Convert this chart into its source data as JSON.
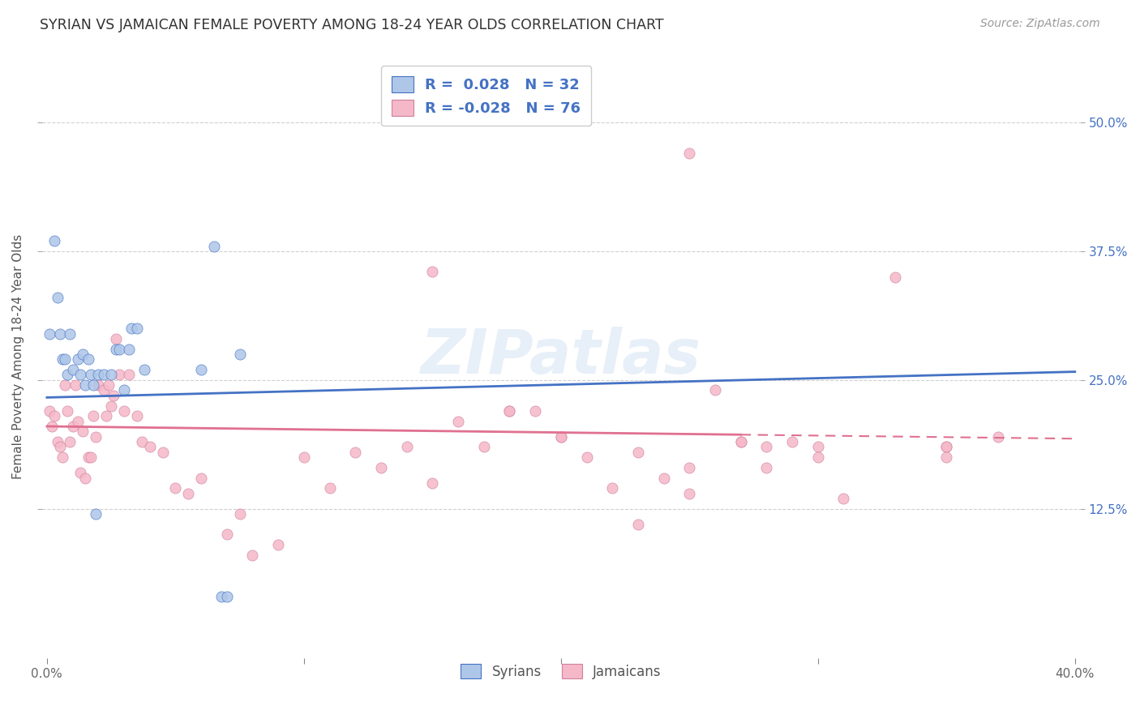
{
  "title": "SYRIAN VS JAMAICAN FEMALE POVERTY AMONG 18-24 YEAR OLDS CORRELATION CHART",
  "source": "Source: ZipAtlas.com",
  "ylabel": "Female Poverty Among 18-24 Year Olds",
  "ytick_labels": [
    "50.0%",
    "37.5%",
    "25.0%",
    "12.5%"
  ],
  "ytick_values": [
    0.5,
    0.375,
    0.25,
    0.125
  ],
  "ylim": [
    -0.02,
    0.565
  ],
  "xlim": [
    -0.002,
    0.402
  ],
  "watermark": "ZIPatlas",
  "legend_r_syrian": "R =  0.028",
  "legend_n_syrian": "N = 32",
  "legend_r_jamaican": "R = -0.028",
  "legend_n_jamaican": "N = 76",
  "color_syrian": "#aec6e8",
  "color_jamaican": "#f5b8c8",
  "color_trend_syrian": "#4472c4",
  "color_trend_jamaican": "#e07090",
  "color_text_blue": "#4472c4",
  "background_color": "#ffffff",
  "grid_color": "#d0d0d0",
  "syrians_x": [
    0.001,
    0.003,
    0.004,
    0.005,
    0.006,
    0.007,
    0.008,
    0.009,
    0.01,
    0.012,
    0.013,
    0.014,
    0.015,
    0.016,
    0.017,
    0.018,
    0.019,
    0.02,
    0.022,
    0.025,
    0.027,
    0.028,
    0.03,
    0.032,
    0.033,
    0.035,
    0.038,
    0.06,
    0.065,
    0.068,
    0.07,
    0.075
  ],
  "syrians_y": [
    0.295,
    0.385,
    0.33,
    0.295,
    0.27,
    0.27,
    0.255,
    0.295,
    0.26,
    0.27,
    0.255,
    0.275,
    0.245,
    0.27,
    0.255,
    0.245,
    0.12,
    0.255,
    0.255,
    0.255,
    0.28,
    0.28,
    0.24,
    0.28,
    0.3,
    0.3,
    0.26,
    0.26,
    0.38,
    0.04,
    0.04,
    0.275
  ],
  "jamaicans_x": [
    0.001,
    0.002,
    0.003,
    0.004,
    0.005,
    0.006,
    0.007,
    0.008,
    0.009,
    0.01,
    0.011,
    0.012,
    0.013,
    0.014,
    0.015,
    0.016,
    0.017,
    0.018,
    0.019,
    0.02,
    0.022,
    0.023,
    0.024,
    0.025,
    0.026,
    0.027,
    0.028,
    0.03,
    0.032,
    0.035,
    0.037,
    0.04,
    0.045,
    0.05,
    0.055,
    0.06,
    0.07,
    0.075,
    0.08,
    0.09,
    0.1,
    0.11,
    0.12,
    0.13,
    0.14,
    0.15,
    0.16,
    0.17,
    0.18,
    0.19,
    0.2,
    0.21,
    0.22,
    0.23,
    0.24,
    0.25,
    0.26,
    0.27,
    0.28,
    0.29,
    0.3,
    0.31,
    0.33,
    0.35,
    0.15,
    0.18,
    0.2,
    0.23,
    0.25,
    0.28,
    0.3,
    0.35,
    0.25,
    0.27,
    0.35,
    0.37
  ],
  "jamaicans_y": [
    0.22,
    0.205,
    0.215,
    0.19,
    0.185,
    0.175,
    0.245,
    0.22,
    0.19,
    0.205,
    0.245,
    0.21,
    0.16,
    0.2,
    0.155,
    0.175,
    0.175,
    0.215,
    0.195,
    0.245,
    0.24,
    0.215,
    0.245,
    0.225,
    0.235,
    0.29,
    0.255,
    0.22,
    0.255,
    0.215,
    0.19,
    0.185,
    0.18,
    0.145,
    0.14,
    0.155,
    0.1,
    0.12,
    0.08,
    0.09,
    0.175,
    0.145,
    0.18,
    0.165,
    0.185,
    0.15,
    0.21,
    0.185,
    0.22,
    0.22,
    0.195,
    0.175,
    0.145,
    0.11,
    0.155,
    0.14,
    0.24,
    0.19,
    0.165,
    0.19,
    0.185,
    0.135,
    0.35,
    0.185,
    0.355,
    0.22,
    0.195,
    0.18,
    0.165,
    0.185,
    0.175,
    0.185,
    0.47,
    0.19,
    0.175,
    0.195
  ],
  "trend_syrian_x0": 0.0,
  "trend_syrian_x1": 0.4,
  "trend_syrian_y0": 0.233,
  "trend_syrian_y1": 0.258,
  "trend_jamaican_x0": 0.0,
  "trend_jamaican_x1": 0.4,
  "trend_jamaican_y0": 0.205,
  "trend_jamaican_y1": 0.193,
  "trend_jamaican_dashed_x0": 0.27,
  "trend_jamaican_dashed_x1": 0.4
}
